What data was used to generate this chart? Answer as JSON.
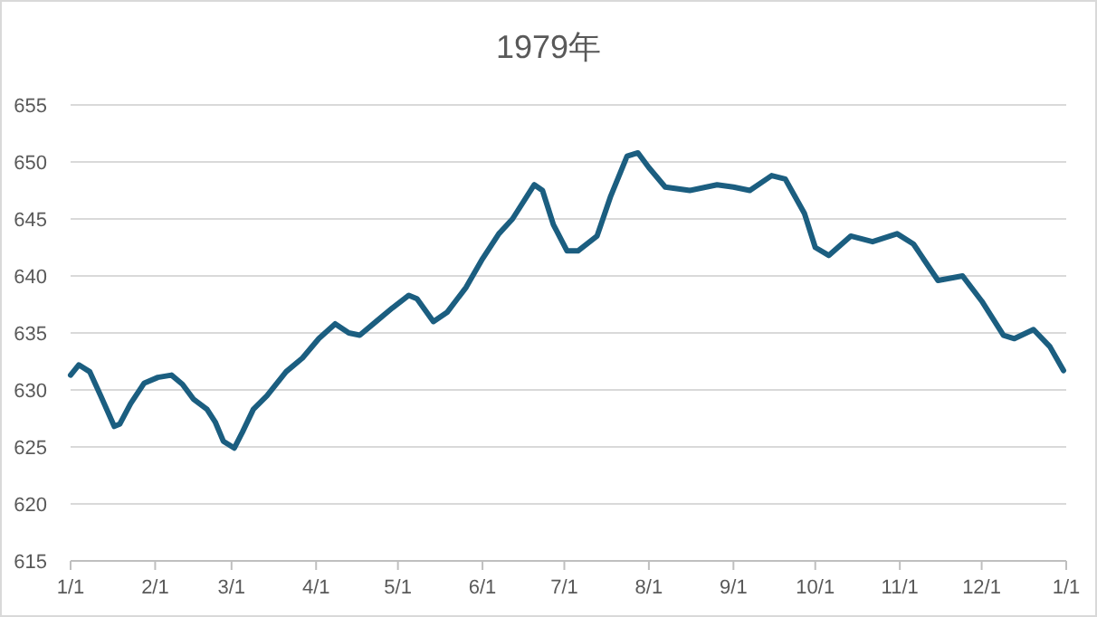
{
  "chart_data": {
    "type": "line",
    "title": "1979年",
    "x": [
      "1979-01-01",
      "1979-01-04",
      "1979-01-08",
      "1979-01-12",
      "1979-01-17",
      "1979-01-19",
      "1979-01-23",
      "1979-01-28",
      "1979-02-02",
      "1979-02-07",
      "1979-02-11",
      "1979-02-15",
      "1979-02-20",
      "1979-02-23",
      "1979-02-26",
      "1979-03-02",
      "1979-03-05",
      "1979-03-09",
      "1979-03-14",
      "1979-03-21",
      "1979-03-27",
      "1979-04-02",
      "1979-04-08",
      "1979-04-13",
      "1979-04-17",
      "1979-04-23",
      "1979-04-29",
      "1979-05-05",
      "1979-05-08",
      "1979-05-14",
      "1979-05-19",
      "1979-05-26",
      "1979-06-01",
      "1979-06-07",
      "1979-06-12",
      "1979-06-20",
      "1979-06-23",
      "1979-06-27",
      "1979-07-02",
      "1979-07-06",
      "1979-07-13",
      "1979-07-18",
      "1979-07-24",
      "1979-07-28",
      "1979-08-01",
      "1979-08-07",
      "1979-08-16",
      "1979-08-26",
      "1979-09-01",
      "1979-09-07",
      "1979-09-15",
      "1979-09-20",
      "1979-09-27",
      "1979-10-01",
      "1979-10-06",
      "1979-10-14",
      "1979-10-22",
      "1979-10-31",
      "1979-11-06",
      "1979-11-15",
      "1979-11-24",
      "1979-12-01",
      "1979-12-09",
      "1979-12-13",
      "1979-12-20",
      "1979-12-26",
      "1979-12-31"
    ],
    "series": [
      {
        "color": "#1b5e80",
        "values": [
          631.3,
          632.2,
          631.6,
          629.5,
          626.8,
          627.0,
          628.8,
          630.6,
          631.1,
          631.3,
          630.5,
          629.2,
          628.3,
          627.2,
          625.5,
          624.9,
          626.3,
          628.3,
          629.5,
          631.6,
          632.8,
          634.5,
          635.8,
          635.0,
          634.8,
          636.0,
          637.2,
          638.3,
          638.0,
          636.0,
          636.8,
          639.0,
          641.5,
          643.7,
          645.0,
          648.0,
          647.5,
          644.5,
          642.2,
          642.2,
          643.5,
          647.0,
          650.5,
          650.8,
          649.5,
          647.8,
          647.5,
          648.0,
          647.8,
          647.5,
          648.8,
          648.5,
          645.5,
          642.5,
          641.8,
          643.5,
          643.0,
          643.7,
          642.8,
          639.6,
          640.0,
          637.8,
          634.8,
          634.5,
          635.3,
          633.8,
          631.7
        ]
      }
    ],
    "xlim": [
      "1979-01-01",
      "1980-01-01"
    ],
    "xticks": [
      {
        "value": "1979-01-01",
        "label": "1/1"
      },
      {
        "value": "1979-02-01",
        "label": "2/1"
      },
      {
        "value": "1979-03-01",
        "label": "3/1"
      },
      {
        "value": "1979-04-01",
        "label": "4/1"
      },
      {
        "value": "1979-05-01",
        "label": "5/1"
      },
      {
        "value": "1979-06-01",
        "label": "6/1"
      },
      {
        "value": "1979-07-01",
        "label": "7/1"
      },
      {
        "value": "1979-08-01",
        "label": "8/1"
      },
      {
        "value": "1979-09-01",
        "label": "9/1"
      },
      {
        "value": "1979-10-01",
        "label": "10/1"
      },
      {
        "value": "1979-11-01",
        "label": "11/1"
      },
      {
        "value": "1979-12-01",
        "label": "12/1"
      },
      {
        "value": "1980-01-01",
        "label": "1/1"
      }
    ],
    "ylim": [
      615,
      655
    ],
    "yticks": [
      615,
      620,
      625,
      630,
      635,
      640,
      645,
      650,
      655
    ],
    "grid": "y",
    "line_style": "solid"
  }
}
